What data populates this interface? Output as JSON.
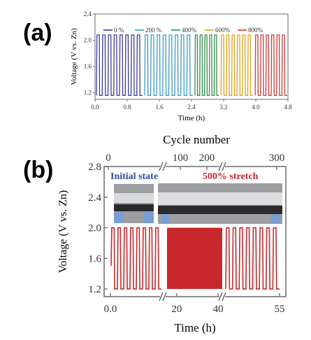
{
  "chart_data": [
    {
      "panel_label": "(a)",
      "type": "line",
      "ylabel": "Voltage (V vs. Zn)",
      "xlabel": "Time (h)",
      "ylim": [
        1.1,
        2.4
      ],
      "xlim": [
        0,
        4.8
      ],
      "yticks": [
        "1.2",
        "1.6",
        "2.0",
        "2.4"
      ],
      "xticks": [
        "0.0",
        "0.8",
        "1.6",
        "2.4",
        "3.2",
        "4.0",
        "4.8"
      ],
      "voltage_high": 2.08,
      "voltage_low": 1.16,
      "legend_position": "top",
      "series": [
        {
          "name": "0 %",
          "color": "#3a3a9e",
          "t_start": 0.0,
          "t_end": 1.2,
          "cycles": 8
        },
        {
          "name": "200 %",
          "color": "#3a9bc9",
          "t_start": 1.2,
          "t_end": 2.45,
          "cycles": 8
        },
        {
          "name": "400%",
          "color": "#2f8f4a",
          "t_start": 2.45,
          "t_end": 3.1,
          "cycles": 5
        },
        {
          "name": "600%",
          "color": "#e3a21a",
          "t_start": 3.1,
          "t_end": 3.95,
          "cycles": 6
        },
        {
          "name": "800%",
          "color": "#d03a3a",
          "t_start": 3.95,
          "t_end": 4.8,
          "cycles": 6
        }
      ]
    },
    {
      "panel_label": "(b)",
      "type": "line",
      "ylabel": "Voltage (V vs. Zn)",
      "xlabel": "Time (h)",
      "top_axis_label": "Cycle number",
      "top_ticks": [
        "0",
        "100",
        "200",
        "300"
      ],
      "yticks": [
        "1.2",
        "1.6",
        "2.0",
        "2.4",
        "2.8"
      ],
      "xticks": [
        "0.0",
        "20",
        "40",
        "55"
      ],
      "ylim": [
        1.1,
        2.8
      ],
      "voltage_high": 2.0,
      "voltage_low": 1.2,
      "color": "#c8282b",
      "axis_breaks": "two breaks on time axis",
      "inset_labels": [
        "Initial state",
        "500% stretch"
      ],
      "inset_label_colors": [
        "#2d4ea3",
        "#c8282b"
      ],
      "segments": [
        {
          "range": "0.0-15",
          "cycles": 8
        },
        {
          "range": "15-42",
          "dense": true
        },
        {
          "range": "42-55",
          "cycles": 8
        }
      ]
    }
  ]
}
